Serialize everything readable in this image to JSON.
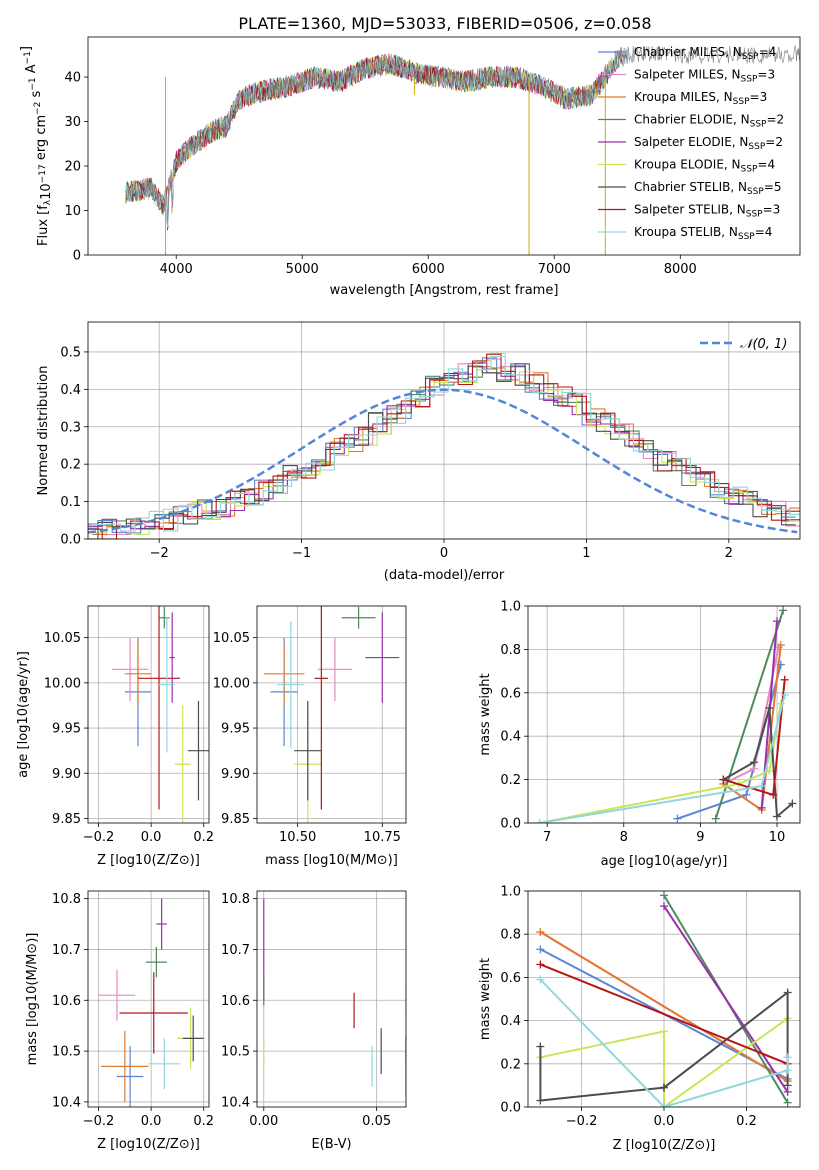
{
  "title": "PLATE=1360, MJD=53033, FIBERID=0506, z=0.058",
  "chart_data": [
    {
      "id": "spectrum",
      "type": "line",
      "ylabel": "Flux [f_λ 10^-17 erg cm^-2 s^-1 A^-1]",
      "xlabel": "wavelength [Angstrom, rest frame]",
      "xlim": [
        3300,
        8950
      ],
      "ylim": [
        0,
        49
      ],
      "xticks": [
        4000,
        5000,
        6000,
        7000,
        8000
      ],
      "yticks": [
        0,
        10,
        20,
        30,
        40
      ],
      "observed_data_x": [
        3600,
        3800,
        3900,
        4000,
        4100,
        4200,
        4300,
        4400,
        4500,
        4700,
        4900,
        5100,
        5300,
        5500,
        5700,
        5900,
        6100,
        6300,
        6500,
        6700,
        6900,
        7100,
        7300,
        7500,
        7600
      ],
      "observed_data_y": [
        14,
        15,
        11,
        21,
        24,
        26,
        28,
        29,
        35,
        37,
        38,
        40,
        39,
        42,
        43,
        41,
        40,
        39,
        40,
        40,
        38,
        35,
        36,
        44,
        45
      ],
      "legend": [
        {
          "label": "Chabrier MILES, N",
          "sub": "SSP",
          "n": "=4",
          "color": "#5b85d6"
        },
        {
          "label": "Salpeter MILES, N",
          "sub": "SSP",
          "n": "=3",
          "color": "#e68ac2"
        },
        {
          "label": "Kroupa MILES, N",
          "sub": "SSP",
          "n": "=3",
          "color": "#e07b2e"
        },
        {
          "label": "Chabrier ELODIE, N",
          "sub": "SSP",
          "n": "=2",
          "color": "#4f8a5e"
        },
        {
          "label": "Salpeter ELODIE, N",
          "sub": "SSP",
          "n": "=2",
          "color": "#9b2fae"
        },
        {
          "label": "Kroupa ELODIE, N",
          "sub": "SSP",
          "n": "=4",
          "color": "#c8e65a"
        },
        {
          "label": "Chabrier STELIB, N",
          "sub": "SSP",
          "n": "=5",
          "color": "#4d4d4d"
        },
        {
          "label": "Salpeter STELIB, N",
          "sub": "SSP",
          "n": "=3",
          "color": "#b21818"
        },
        {
          "label": "Kroupa STELIB, N",
          "sub": "SSP",
          "n": "=4",
          "color": "#8fd8de"
        }
      ]
    },
    {
      "id": "residuals",
      "type": "histogram",
      "xlabel": "(data-model)/error",
      "ylabel": "Normed distribution",
      "xlim": [
        -2.5,
        2.5
      ],
      "ylim": [
        0,
        0.58
      ],
      "xticks": [
        -2,
        -1,
        0,
        1,
        2
      ],
      "yticks": [
        0.0,
        0.1,
        0.2,
        0.3,
        0.4,
        0.5
      ],
      "legend": "𝒩(0, 1)",
      "bin_width": 0.1,
      "series_envelope": [
        0.02,
        0.025,
        0.03,
        0.04,
        0.045,
        0.05,
        0.06,
        0.07,
        0.08,
        0.085,
        0.1,
        0.11,
        0.13,
        0.15,
        0.17,
        0.19,
        0.21,
        0.24,
        0.26,
        0.28,
        0.31,
        0.33,
        0.35,
        0.38,
        0.41,
        0.43,
        0.44,
        0.46,
        0.47,
        0.45,
        0.44,
        0.42,
        0.4,
        0.38,
        0.36,
        0.33,
        0.31,
        0.29,
        0.26,
        0.24,
        0.21,
        0.19,
        0.17,
        0.15,
        0.13,
        0.11,
        0.1,
        0.085,
        0.075,
        0.06
      ]
    },
    {
      "id": "age_vs_Z",
      "type": "errorbar",
      "xlabel": "Z [log10(Z/Z⊙)]",
      "ylabel": "age [log10(age/yr)]",
      "xlim": [
        -0.24,
        0.22
      ],
      "ylim": [
        9.845,
        10.085
      ],
      "xticks": [
        -0.2,
        0.0,
        0.2
      ],
      "yticks": [
        9.85,
        9.9,
        9.95,
        10.0,
        10.05
      ],
      "points": [
        {
          "x": -0.05,
          "y": 9.99,
          "xe": 0.05,
          "ye": 0.06,
          "c": "#5b85d6"
        },
        {
          "x": -0.08,
          "y": 10.015,
          "xe": 0.07,
          "ye": 0.035,
          "c": "#e68ac2"
        },
        {
          "x": -0.05,
          "y": 10.01,
          "xe": 0.05,
          "ye": 0.035,
          "c": "#e07b2e"
        },
        {
          "x": 0.05,
          "y": 10.072,
          "xe": 0.02,
          "ye": 0.012,
          "c": "#4f8a5e"
        },
        {
          "x": 0.08,
          "y": 10.028,
          "xe": 0.01,
          "ye": 0.05,
          "c": "#9b2fae"
        },
        {
          "x": 0.12,
          "y": 9.91,
          "xe": 0.03,
          "ye": 0.065,
          "c": "#c8e65a"
        },
        {
          "x": 0.18,
          "y": 9.925,
          "xe": 0.04,
          "ye": 0.055,
          "c": "#4d4d4d"
        },
        {
          "x": 0.03,
          "y": 10.005,
          "xe": 0.08,
          "ye": 0.145,
          "c": "#b21818"
        },
        {
          "x": 0.06,
          "y": 9.998,
          "xe": 0.03,
          "ye": 0.075,
          "c": "#8fd8de"
        }
      ]
    },
    {
      "id": "age_vs_mass",
      "type": "errorbar",
      "xlabel": "mass [log10(M/M⊙)]",
      "xlim": [
        10.38,
        10.82
      ],
      "ylim": [
        9.845,
        10.085
      ],
      "xticks": [
        10.5,
        10.75
      ],
      "yticks": [
        9.85,
        9.9,
        9.95,
        10.0,
        10.05
      ],
      "points": [
        {
          "x": 10.46,
          "y": 9.99,
          "xe": 0.04,
          "ye": 0.06,
          "c": "#5b85d6"
        },
        {
          "x": 10.61,
          "y": 10.015,
          "xe": 0.05,
          "ye": 0.035,
          "c": "#e68ac2"
        },
        {
          "x": 10.46,
          "y": 10.01,
          "xe": 0.06,
          "ye": 0.035,
          "c": "#e07b2e"
        },
        {
          "x": 10.68,
          "y": 10.072,
          "xe": 0.05,
          "ye": 0.012,
          "c": "#4f8a5e"
        },
        {
          "x": 10.75,
          "y": 10.028,
          "xe": 0.05,
          "ye": 0.05,
          "c": "#9b2fae"
        },
        {
          "x": 10.53,
          "y": 9.91,
          "xe": 0.04,
          "ye": 0.065,
          "c": "#c8e65a"
        },
        {
          "x": 10.53,
          "y": 9.925,
          "xe": 0.04,
          "ye": 0.055,
          "c": "#4d4d4d"
        },
        {
          "x": 10.57,
          "y": 10.005,
          "xe": 0.02,
          "ye": 0.145,
          "c": "#b21818"
        },
        {
          "x": 10.48,
          "y": 9.998,
          "xe": 0.04,
          "ye": 0.07,
          "c": "#8fd8de"
        }
      ]
    },
    {
      "id": "weight_vs_age",
      "type": "line",
      "xlabel": "age [log10(age/yr)]",
      "ylabel": "mass weight",
      "xlim": [
        6.75,
        10.3
      ],
      "ylim": [
        0,
        1.0
      ],
      "xticks": [
        7,
        8,
        9,
        10
      ],
      "yticks": [
        0.0,
        0.2,
        0.4,
        0.6,
        0.8,
        1.0
      ],
      "series": [
        {
          "c": "#5b85d6",
          "x": [
            8.7,
            9.6,
            10.05
          ],
          "y": [
            0.02,
            0.13,
            0.73
          ]
        },
        {
          "c": "#e68ac2",
          "x": [
            9.3,
            9.7,
            10.02
          ],
          "y": [
            0.18,
            0.25,
            0.81
          ]
        },
        {
          "c": "#e07b2e",
          "x": [
            9.3,
            9.8,
            10.05
          ],
          "y": [
            0.18,
            0.06,
            0.82
          ]
        },
        {
          "c": "#4f8a5e",
          "x": [
            9.2,
            10.08
          ],
          "y": [
            0.02,
            0.98
          ]
        },
        {
          "c": "#9b2fae",
          "x": [
            9.8,
            10.0
          ],
          "y": [
            0.07,
            0.93
          ]
        },
        {
          "c": "#c8e65a",
          "x": [
            6.9,
            9.5,
            9.9,
            10.05
          ],
          "y": [
            0.0,
            0.18,
            0.24,
            0.55
          ]
        },
        {
          "c": "#4d4d4d",
          "x": [
            9.3,
            9.7,
            9.9,
            10.0,
            10.2
          ],
          "y": [
            0.2,
            0.28,
            0.53,
            0.03,
            0.09
          ]
        },
        {
          "c": "#b21818",
          "x": [
            9.3,
            9.95,
            10.1
          ],
          "y": [
            0.2,
            0.13,
            0.66
          ]
        },
        {
          "c": "#8fd8de",
          "x": [
            6.9,
            9.8,
            10.1
          ],
          "y": [
            0.0,
            0.17,
            0.59
          ]
        }
      ]
    },
    {
      "id": "mass_vs_Z",
      "type": "errorbar",
      "xlabel": "Z [log10(Z/Z⊙)]",
      "ylabel": "mass [log10(M/M⊙)]",
      "xlim": [
        -0.24,
        0.22
      ],
      "ylim": [
        10.39,
        10.815
      ],
      "xticks": [
        -0.2,
        0.0,
        0.2
      ],
      "yticks": [
        10.4,
        10.5,
        10.6,
        10.7,
        10.8
      ],
      "points": [
        {
          "x": -0.08,
          "y": 10.45,
          "xe": 0.05,
          "ye": 0.06,
          "c": "#5b85d6"
        },
        {
          "x": -0.13,
          "y": 10.61,
          "xe": 0.07,
          "ye": 0.05,
          "c": "#e68ac2"
        },
        {
          "x": -0.1,
          "y": 10.47,
          "xe": 0.09,
          "ye": 0.07,
          "c": "#e07b2e"
        },
        {
          "x": 0.02,
          "y": 10.675,
          "xe": 0.04,
          "ye": 0.03,
          "c": "#4f8a5e"
        },
        {
          "x": 0.04,
          "y": 10.75,
          "xe": 0.02,
          "ye": 0.05,
          "c": "#9b2fae"
        },
        {
          "x": 0.15,
          "y": 10.525,
          "xe": 0.05,
          "ye": 0.06,
          "c": "#c8e65a"
        },
        {
          "x": 0.16,
          "y": 10.525,
          "xe": 0.04,
          "ye": 0.045,
          "c": "#4d4d4d"
        },
        {
          "x": 0.01,
          "y": 10.575,
          "xe": 0.13,
          "ye": 0.08,
          "c": "#b21818"
        },
        {
          "x": 0.05,
          "y": 10.475,
          "xe": 0.06,
          "ye": 0.05,
          "c": "#8fd8de"
        }
      ]
    },
    {
      "id": "mass_vs_EBV",
      "type": "errorbar",
      "xlabel": "E(B-V)",
      "xlim": [
        -0.003,
        0.063
      ],
      "ylim": [
        10.39,
        10.815
      ],
      "xticks": [
        0.0,
        0.05
      ],
      "yticks": [
        10.4,
        10.5,
        10.6,
        10.7,
        10.8
      ],
      "points": [
        {
          "x": 0.0,
          "y": 10.7,
          "xe": 0.0,
          "ye": 0.1,
          "c": "#9b2fae"
        },
        {
          "x": 0.0,
          "y": 10.5,
          "xe": 0.0,
          "ye": 0.03,
          "c": "#c8e65a"
        },
        {
          "x": 0.0,
          "y": 10.62,
          "xe": 0.0,
          "ye": 0.03,
          "c": "#4f8a5e"
        },
        {
          "x": 0.04,
          "y": 10.58,
          "xe": 0.0,
          "ye": 0.035,
          "c": "#b21818"
        },
        {
          "x": 0.048,
          "y": 10.47,
          "xe": 0.0,
          "ye": 0.04,
          "c": "#8fd8de"
        },
        {
          "x": 0.052,
          "y": 10.5,
          "xe": 0.0,
          "ye": 0.045,
          "c": "#4d4d4d"
        },
        {
          "x": 0.063,
          "y": 10.6,
          "xe": 0.0,
          "ye": 0.03,
          "c": "#e68ac2"
        },
        {
          "x": 0.063,
          "y": 10.47,
          "xe": 0.0,
          "ye": 0.06,
          "c": "#e07b2e"
        },
        {
          "x": 0.063,
          "y": 10.5,
          "xe": 0.0,
          "ye": 0.03,
          "c": "#5b85d6"
        }
      ]
    },
    {
      "id": "weight_vs_Z",
      "type": "line",
      "xlabel": "Z [log10(Z/Z⊙)]",
      "ylabel": "mass weight",
      "xlim": [
        -0.33,
        0.33
      ],
      "ylim": [
        0,
        1.0
      ],
      "xticks": [
        -0.2,
        0.0,
        0.2
      ],
      "yticks": [
        0.0,
        0.2,
        0.4,
        0.6,
        0.8,
        1.0
      ],
      "series": [
        {
          "c": "#5b85d6",
          "x": [
            -0.3,
            0.3
          ],
          "y": [
            0.73,
            0.13
          ]
        },
        {
          "c": "#e68ac2",
          "x": [
            -0.3,
            0.3
          ],
          "y": [
            0.81,
            0.12
          ]
        },
        {
          "c": "#e07b2e",
          "x": [
            -0.3,
            0.3
          ],
          "y": [
            0.81,
            0.12
          ]
        },
        {
          "c": "#4f8a5e",
          "x": [
            0.0,
            0.3
          ],
          "y": [
            0.98,
            0.02
          ]
        },
        {
          "c": "#9b2fae",
          "x": [
            0.0,
            0.3
          ],
          "y": [
            0.93,
            0.07
          ]
        },
        {
          "c": "#c8e65a",
          "x": [
            -0.3,
            0.0,
            0.0,
            0.3
          ],
          "y": [
            0.23,
            0.35,
            0.0,
            0.41
          ]
        },
        {
          "c": "#4d4d4d",
          "x": [
            -0.3,
            -0.3,
            0.0,
            0.0,
            0.3,
            0.3
          ],
          "y": [
            0.28,
            0.03,
            0.09,
            0.09,
            0.53,
            0.1
          ]
        },
        {
          "c": "#b21818",
          "x": [
            -0.3,
            0.3
          ],
          "y": [
            0.66,
            0.2
          ]
        },
        {
          "c": "#8fd8de",
          "x": [
            -0.3,
            0.0,
            0.3,
            0.3
          ],
          "y": [
            0.59,
            0.0,
            0.17,
            0.23
          ]
        }
      ]
    }
  ]
}
